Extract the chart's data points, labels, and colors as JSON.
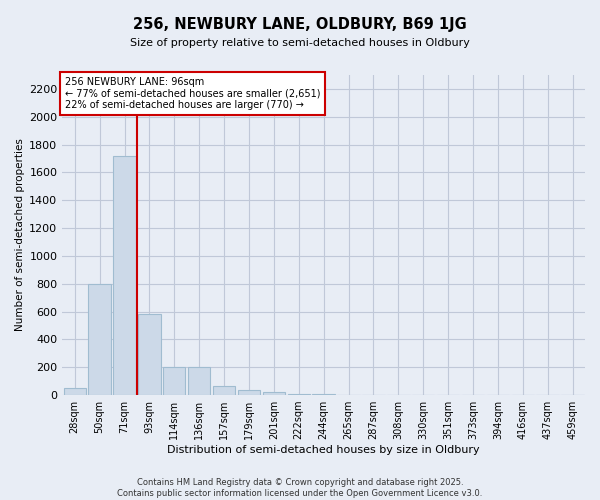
{
  "title_line1": "256, NEWBURY LANE, OLDBURY, B69 1JG",
  "title_line2": "Size of property relative to semi-detached houses in Oldbury",
  "xlabel": "Distribution of semi-detached houses by size in Oldbury",
  "ylabel": "Number of semi-detached properties",
  "categories": [
    "28sqm",
    "50sqm",
    "71sqm",
    "93sqm",
    "114sqm",
    "136sqm",
    "157sqm",
    "179sqm",
    "201sqm",
    "222sqm",
    "244sqm",
    "265sqm",
    "287sqm",
    "308sqm",
    "330sqm",
    "351sqm",
    "373sqm",
    "394sqm",
    "416sqm",
    "437sqm",
    "459sqm"
  ],
  "values": [
    50,
    800,
    1720,
    580,
    205,
    200,
    65,
    35,
    22,
    10,
    5,
    2,
    0,
    0,
    0,
    0,
    0,
    0,
    0,
    0,
    0
  ],
  "bar_color": "#ccd9e8",
  "bar_edge_color": "#a0bcd0",
  "redline_color": "#cc0000",
  "redline_x": 2.5,
  "annotation_line1": "256 NEWBURY LANE: 96sqm",
  "annotation_line2": "← 77% of semi-detached houses are smaller (2,651)",
  "annotation_line3": "22% of semi-detached houses are larger (770) →",
  "annotation_box_color": "#ffffff",
  "annotation_box_edge": "#cc0000",
  "ylim": [
    0,
    2300
  ],
  "yticks": [
    0,
    200,
    400,
    600,
    800,
    1000,
    1200,
    1400,
    1600,
    1800,
    2000,
    2200
  ],
  "grid_color": "#c0c8d8",
  "bg_color": "#e8edf5",
  "footer_line1": "Contains HM Land Registry data © Crown copyright and database right 2025.",
  "footer_line2": "Contains public sector information licensed under the Open Government Licence v3.0."
}
